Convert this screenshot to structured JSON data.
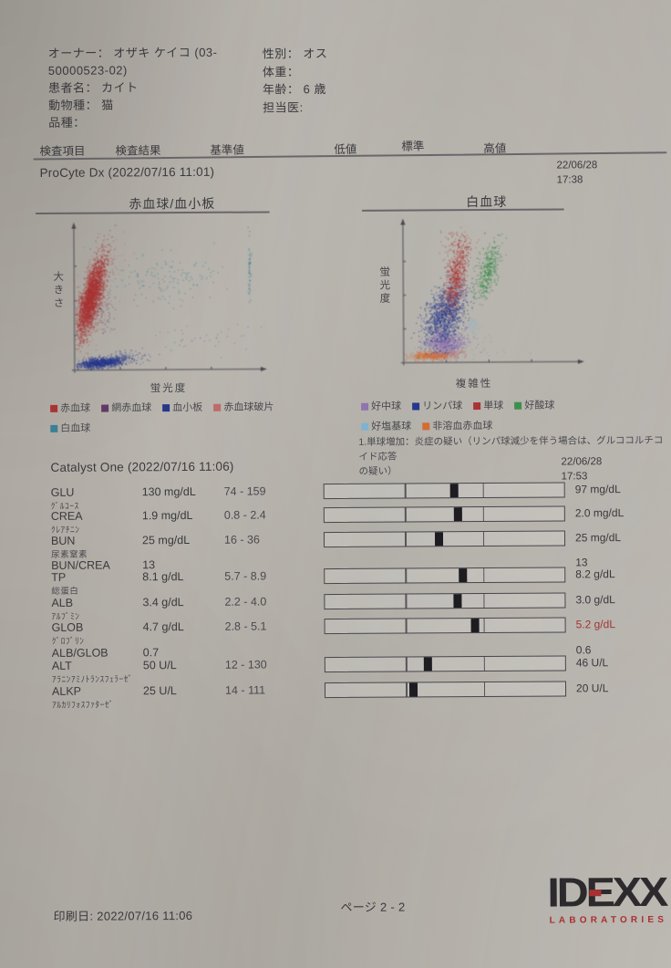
{
  "patient": {
    "owner_line1": "オーナー： オザキ ケイコ (03-",
    "owner_line2": "50000523-02)",
    "name_line": "患者名： カイト",
    "species_line": "動物種： 猫",
    "breed_line": "品種：",
    "sex_line": "性別： オス",
    "weight_line": "体重：",
    "age_line": "年齢： 6 歳",
    "vet_line": "担当医:"
  },
  "columns": {
    "labels": [
      "検査項目",
      "検査結果",
      "基準値",
      "低値",
      "標準",
      "高値"
    ]
  },
  "procyte": {
    "title": "ProCyte Dx (2022/07/16 11:01)",
    "prev_date": "22/06/28",
    "prev_time": "17:38"
  },
  "chart_data": [
    {
      "type": "scatter",
      "title": "赤血球/血小板",
      "xlabel": "蛍光度",
      "ylabel": "大きさ",
      "axes": {
        "arrows": true,
        "ticks": true,
        "grid": false
      },
      "legend_rows": [
        [
          {
            "label": "赤血球",
            "color": "#a93434"
          },
          {
            "label": "網赤血球",
            "color": "#5f3a66"
          },
          {
            "label": "血小板",
            "color": "#27378a"
          },
          {
            "label": "赤血球破片",
            "color": "#c06a6a"
          }
        ],
        [
          {
            "label": "白血球",
            "color": "#3a7f96"
          }
        ]
      ],
      "clusters": [
        {
          "name": "rbc-halo",
          "color": "#b04444",
          "n": 300,
          "cx": 0.1,
          "cy": 0.5,
          "sx": 0.05,
          "sy": 0.21,
          "rot": -12,
          "alpha": 0.3
        },
        {
          "name": "rbc-main",
          "color": "#a93434",
          "n": 2800,
          "cx": 0.085,
          "cy": 0.52,
          "sx": 0.026,
          "sy": 0.15,
          "rot": -12,
          "alpha": 0.5
        },
        {
          "name": "reticulocytes",
          "color": "#5f3a66",
          "n": 60,
          "cx": 0.16,
          "cy": 0.38,
          "sx": 0.03,
          "sy": 0.08,
          "rot": 0,
          "alpha": 0.45
        },
        {
          "name": "platelets",
          "color": "#27378a",
          "n": 900,
          "cx": 0.14,
          "cy": 0.05,
          "sx": 0.065,
          "sy": 0.018,
          "rot": 8,
          "alpha": 0.55
        },
        {
          "name": "platelet-tail",
          "color": "#27378a",
          "n": 110,
          "cx": 0.28,
          "cy": 0.09,
          "sx": 0.06,
          "sy": 0.03,
          "rot": 12,
          "alpha": 0.4
        },
        {
          "name": "wbc-upper-scatter",
          "color": "#3a7f96",
          "n": 140,
          "cx": 0.52,
          "cy": 0.66,
          "sx": 0.17,
          "sy": 0.09,
          "rot": 0,
          "alpha": 0.5
        },
        {
          "name": "wbc-right-streak",
          "color": "#3a7f96",
          "n": 55,
          "cx": 0.955,
          "cy": 0.72,
          "sx": 0.004,
          "sy": 0.11,
          "rot": 0,
          "alpha": 0.55
        },
        {
          "name": "low-scatter",
          "color": "#4a6fa0",
          "n": 40,
          "cx": 0.66,
          "cy": 0.22,
          "sx": 0.14,
          "sy": 0.06,
          "rot": 0,
          "alpha": 0.4
        }
      ]
    },
    {
      "type": "scatter",
      "title": "白血球",
      "xlabel": "複雑性",
      "ylabel": "蛍光度",
      "axes": {
        "arrows": true,
        "ticks": true,
        "grid": false
      },
      "legend_rows": [
        [
          {
            "label": "好中球",
            "color": "#8f74ae"
          },
          {
            "label": "リンパ球",
            "color": "#27378a"
          },
          {
            "label": "単球",
            "color": "#a93434"
          },
          {
            "label": "好酸球",
            "color": "#3e8f4e"
          }
        ],
        [
          {
            "label": "好塩基球",
            "color": "#7fb2d0"
          },
          {
            "label": "非溶血赤血球",
            "color": "#d46c33"
          }
        ]
      ],
      "note_lines": [
        "1.単球増加：炎症の疑い（リンパ球減少を伴う場合は、グルココルチコイド応答",
        "の疑い）"
      ],
      "clusters": [
        {
          "name": "nhrbc",
          "color": "#d46c33",
          "n": 450,
          "cx": 0.17,
          "cy": 0.05,
          "sx": 0.075,
          "sy": 0.016,
          "rot": 4,
          "alpha": 0.6
        },
        {
          "name": "neutrophils",
          "color": "#8f74ae",
          "n": 750,
          "cx": 0.24,
          "cy": 0.14,
          "sx": 0.06,
          "sy": 0.05,
          "rot": -25,
          "alpha": 0.6
        },
        {
          "name": "lymphocytes",
          "color": "#27378a",
          "n": 1200,
          "cx": 0.24,
          "cy": 0.35,
          "sx": 0.055,
          "sy": 0.115,
          "rot": -15,
          "alpha": 0.55
        },
        {
          "name": "monocytes",
          "color": "#a93434",
          "n": 650,
          "cx": 0.3,
          "cy": 0.62,
          "sx": 0.028,
          "sy": 0.13,
          "rot": -8,
          "alpha": 0.55
        },
        {
          "name": "monocytes-top",
          "color": "#a93434",
          "n": 90,
          "cx": 0.31,
          "cy": 0.88,
          "sx": 0.05,
          "sy": 0.06,
          "rot": 0,
          "alpha": 0.4
        },
        {
          "name": "eosinophils",
          "color": "#3e8f4e",
          "n": 420,
          "cx": 0.49,
          "cy": 0.68,
          "sx": 0.028,
          "sy": 0.11,
          "rot": -12,
          "alpha": 0.6
        },
        {
          "name": "basophils",
          "color": "#7fb2d0",
          "n": 40,
          "cx": 0.4,
          "cy": 0.27,
          "sx": 0.022,
          "sy": 0.035,
          "rot": 0,
          "alpha": 0.6
        },
        {
          "name": "noise",
          "color": "#8f74ae",
          "n": 60,
          "cx": 0.33,
          "cy": 0.1,
          "sx": 0.18,
          "sy": 0.05,
          "rot": 0,
          "alpha": 0.3
        }
      ]
    }
  ],
  "catalyst": {
    "title": "Catalyst One (2022/07/16 11:06)",
    "prev_date": "22/06/28",
    "prev_time": "17:53",
    "rows": [
      {
        "code": "GLU",
        "sub": "ｸﾞﾙｺｰｽ",
        "result": "130 mg/dL",
        "range": "74 - 159",
        "bar_marker": 0.54,
        "prev": "97 mg/dL"
      },
      {
        "code": "CREA",
        "sub": "ｸﾚｱﾁﾆﾝ",
        "result": "1.9 mg/dL",
        "range": "0.8 - 2.4",
        "bar_marker": 0.555,
        "prev": "2.0 mg/dL"
      },
      {
        "code": "BUN",
        "sub": "尿素窒素",
        "result": "25 mg/dL",
        "range": "16 - 36",
        "bar_marker": 0.475,
        "prev": "25 mg/dL"
      },
      {
        "code": "BUN/CREA",
        "sub": "",
        "result": "13",
        "range": "",
        "bar_marker": null,
        "prev": "13"
      },
      {
        "code": "TP",
        "sub": "総蛋白",
        "result": "8.1 g/dL",
        "range": "5.7 - 8.9",
        "bar_marker": 0.575,
        "prev": "8.2 g/dL"
      },
      {
        "code": "ALB",
        "sub": "ｱﾙﾌﾞﾐﾝ",
        "result": "3.4 g/dL",
        "range": "2.2 - 4.0",
        "bar_marker": 0.55,
        "prev": "3.0 g/dL"
      },
      {
        "code": "GLOB",
        "sub": "ｸﾞﾛﾌﾞﾘﾝ",
        "result": "4.7 g/dL",
        "range": "2.8 - 5.1",
        "bar_marker": 0.625,
        "prev": "5.2 g/dL",
        "prev_color": "#a23535"
      },
      {
        "code": "ALB/GLOB",
        "sub": "",
        "result": "0.7",
        "range": "",
        "bar_marker": null,
        "prev": "0.6"
      },
      {
        "code": "ALT",
        "sub": "ｱﾗﾆﾝｱﾐﾉﾄﾗﾝｽﾌｪﾗｰｾﾞ",
        "result": "50 U/L",
        "range": "12 - 130",
        "bar_marker": 0.425,
        "prev": "46 U/L"
      },
      {
        "code": "ALKP",
        "sub": "ｱﾙｶﾘﾌｫｽﾌｧﾀｰｾﾞ",
        "result": "25 U/L",
        "range": "14 - 111",
        "bar_marker": 0.365,
        "prev": "20 U/L"
      }
    ]
  },
  "footer": {
    "print_line": "印刷日: 2022/07/16 11:06",
    "page_label": "ページ 2 - 2",
    "logo_main": "IDEXX",
    "logo_sub": "LABORATORIES"
  }
}
